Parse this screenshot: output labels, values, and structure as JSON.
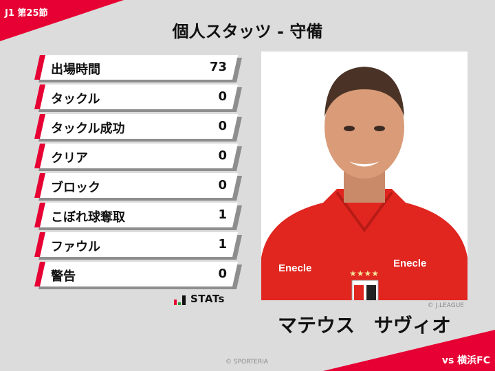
{
  "header": {
    "round": "J1 第25節",
    "title": "個人スタッツ - 守備"
  },
  "stats": [
    {
      "label": "出場時間",
      "value": "73"
    },
    {
      "label": "タックル",
      "value": "0"
    },
    {
      "label": "タックル成功",
      "value": "0"
    },
    {
      "label": "クリア",
      "value": "0"
    },
    {
      "label": "ブロック",
      "value": "0"
    },
    {
      "label": "こぼれ球奪取",
      "value": "1"
    },
    {
      "label": "ファウル",
      "value": "1"
    },
    {
      "label": "警告",
      "value": "0"
    }
  ],
  "logo": {
    "text": "STATs"
  },
  "player": {
    "name": "マテウス　サヴィオ",
    "photo_credit": "© J.LEAGUE",
    "sponsor": "Enecle"
  },
  "footer": {
    "copyright": "© SPORTERIA",
    "opponent": "vs 横浜FC"
  },
  "colors": {
    "accent": "#e60033",
    "background": "#dcdcdc"
  }
}
